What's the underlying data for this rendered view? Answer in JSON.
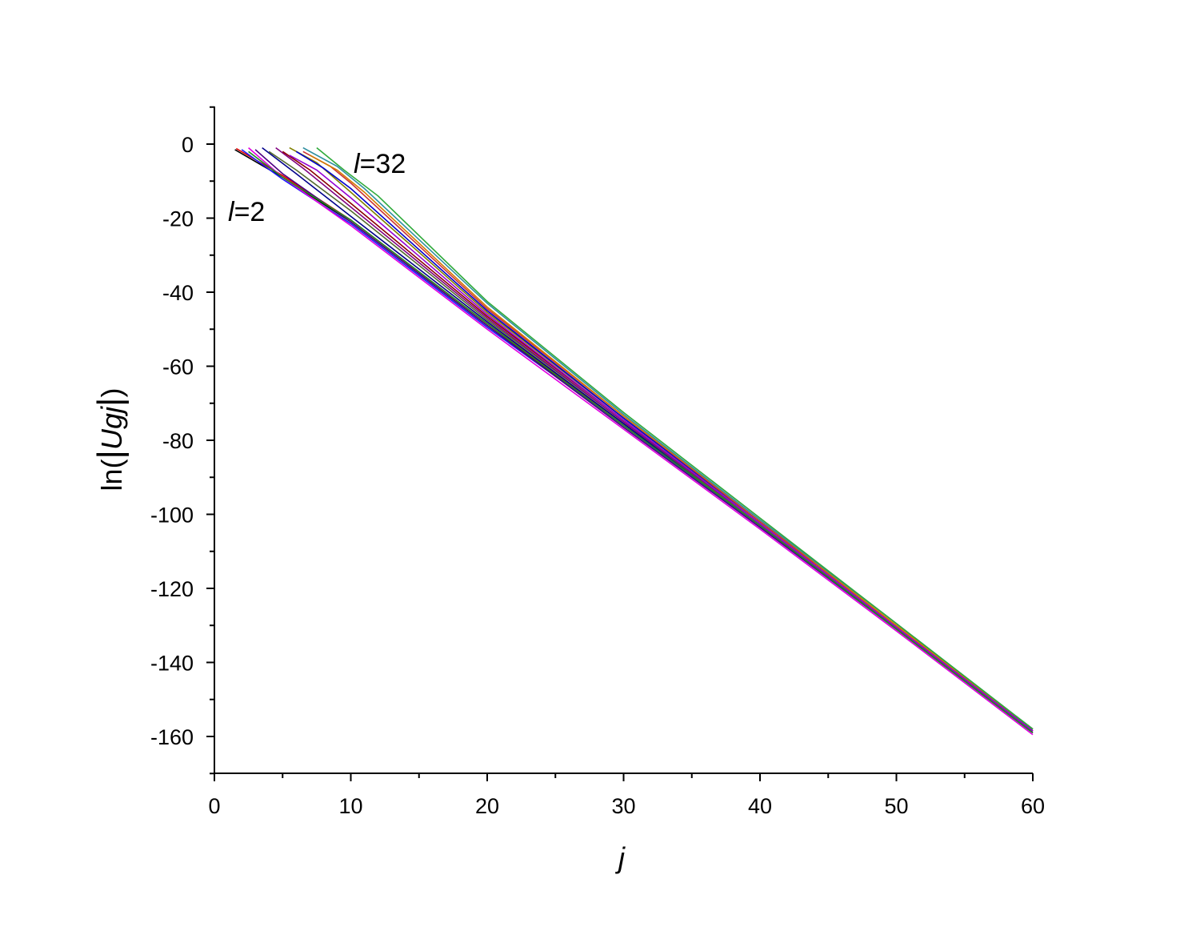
{
  "chart_data": {
    "type": "line",
    "xlabel": "j",
    "ylabel": {
      "prefix": "ln(",
      "symbol": "Ug",
      "subscript": "j",
      "suffix": ")"
    },
    "xlim": [
      0,
      60
    ],
    "ylim": [
      -170,
      10
    ],
    "x_ticks": [
      "0",
      "10",
      "20",
      "30",
      "40",
      "50",
      "60"
    ],
    "y_ticks": [
      "0",
      "-20",
      "-40",
      "-60",
      "-80",
      "-100",
      "-120",
      "-140",
      "-160"
    ],
    "grid": false,
    "annotations": [
      {
        "italic": "l",
        "text": "=32",
        "x": 10.1,
        "y": -4.5
      },
      {
        "italic": "l",
        "text": "=2",
        "x": 1.0,
        "y": -24
      }
    ],
    "series": [
      {
        "color": "#000000",
        "values": [
          [
            1.5,
            -1.5
          ],
          [
            5,
            -9
          ],
          [
            10,
            -21
          ],
          [
            20,
            -49
          ],
          [
            30,
            -76
          ],
          [
            40,
            -103
          ],
          [
            50,
            -131
          ],
          [
            60,
            -159
          ]
        ]
      },
      {
        "color": "#e00000",
        "values": [
          [
            1.6,
            -1.2
          ],
          [
            5,
            -8.5
          ],
          [
            10,
            -20.5
          ],
          [
            20,
            -48.5
          ],
          [
            30,
            -75.5
          ],
          [
            40,
            -103
          ],
          [
            50,
            -131
          ],
          [
            60,
            -159
          ]
        ]
      },
      {
        "color": "#1a1aff",
        "values": [
          [
            2.0,
            -1.5
          ],
          [
            5,
            -9.5
          ],
          [
            10,
            -21.5
          ],
          [
            20,
            -49.5
          ],
          [
            30,
            -76
          ],
          [
            40,
            -103.5
          ],
          [
            50,
            -131
          ],
          [
            60,
            -159
          ]
        ]
      },
      {
        "color": "#e000e0",
        "values": [
          [
            2.5,
            -1.0
          ],
          [
            5,
            -9
          ],
          [
            10,
            -22
          ],
          [
            20,
            -50
          ],
          [
            30,
            -77
          ],
          [
            40,
            -104
          ],
          [
            50,
            -131.5
          ],
          [
            60,
            -159.5
          ]
        ]
      },
      {
        "color": "#00008b",
        "values": [
          [
            3.5,
            -1.0
          ],
          [
            6,
            -8
          ],
          [
            10,
            -19.5
          ],
          [
            20,
            -48
          ],
          [
            30,
            -75.5
          ],
          [
            40,
            -103
          ],
          [
            50,
            -130.5
          ],
          [
            60,
            -158.5
          ]
        ]
      },
      {
        "color": "#556b2f",
        "values": [
          [
            4.0,
            -2.0
          ],
          [
            6,
            -7
          ],
          [
            10,
            -18
          ],
          [
            20,
            -47.5
          ],
          [
            30,
            -75
          ],
          [
            40,
            -103
          ],
          [
            50,
            -130.5
          ],
          [
            60,
            -158.5
          ]
        ]
      },
      {
        "color": "#800080",
        "values": [
          [
            4.5,
            -1.0
          ],
          [
            6.5,
            -6.5
          ],
          [
            10,
            -17
          ],
          [
            20,
            -47
          ],
          [
            30,
            -75
          ],
          [
            40,
            -102.5
          ],
          [
            50,
            -130.5
          ],
          [
            60,
            -158.5
          ]
        ]
      },
      {
        "color": "#8b0000",
        "values": [
          [
            5.0,
            -2.0
          ],
          [
            7,
            -7
          ],
          [
            10,
            -16
          ],
          [
            20,
            -46.5
          ],
          [
            30,
            -74.5
          ],
          [
            40,
            -102.5
          ],
          [
            50,
            -130.5
          ],
          [
            60,
            -158.5
          ]
        ]
      },
      {
        "color": "#9400d3",
        "values": [
          [
            5.5,
            -3.0
          ],
          [
            7.5,
            -7
          ],
          [
            10,
            -14.5
          ],
          [
            20,
            -46
          ],
          [
            30,
            -74.5
          ],
          [
            40,
            -102.5
          ],
          [
            50,
            -130.5
          ],
          [
            60,
            -158.5
          ]
        ]
      },
      {
        "color": "#808000",
        "values": [
          [
            5.5,
            -1.0
          ],
          [
            7.5,
            -5
          ],
          [
            10,
            -13
          ],
          [
            20,
            -45.5
          ],
          [
            30,
            -74
          ],
          [
            40,
            -102
          ],
          [
            50,
            -130
          ],
          [
            60,
            -158
          ]
        ]
      },
      {
        "color": "#0000cd",
        "values": [
          [
            6.0,
            -2.0
          ],
          [
            8,
            -6.5
          ],
          [
            10,
            -12
          ],
          [
            20,
            -45
          ],
          [
            30,
            -74
          ],
          [
            40,
            -102
          ],
          [
            50,
            -130
          ],
          [
            60,
            -158
          ]
        ]
      },
      {
        "color": "#cc3333",
        "values": [
          [
            6.5,
            -2.0
          ],
          [
            8.5,
            -6
          ],
          [
            10,
            -10.5
          ],
          [
            20,
            -44.5
          ],
          [
            30,
            -73.5
          ],
          [
            40,
            -102
          ],
          [
            50,
            -130
          ],
          [
            60,
            -158
          ]
        ]
      },
      {
        "color": "#d47a00",
        "values": [
          [
            7.0,
            -3.0
          ],
          [
            9,
            -7
          ],
          [
            11,
            -13
          ],
          [
            20,
            -44
          ],
          [
            30,
            -73.5
          ],
          [
            40,
            -101.5
          ],
          [
            50,
            -130
          ],
          [
            60,
            -158
          ]
        ]
      },
      {
        "color": "#2f8fa0",
        "values": [
          [
            6.5,
            -1.0
          ],
          [
            9,
            -6
          ],
          [
            11,
            -12
          ],
          [
            20,
            -43
          ],
          [
            30,
            -73
          ],
          [
            40,
            -101.5
          ],
          [
            50,
            -129.5
          ],
          [
            60,
            -158
          ]
        ]
      },
      {
        "color": "#2eaa3a",
        "values": [
          [
            7.5,
            -1.0
          ],
          [
            9.5,
            -7
          ],
          [
            12,
            -14
          ],
          [
            20,
            -42.5
          ],
          [
            30,
            -72.5
          ],
          [
            40,
            -101
          ],
          [
            50,
            -129.5
          ],
          [
            60,
            -158
          ]
        ]
      },
      {
        "color": "#4b0082",
        "values": [
          [
            3.0,
            -1.5
          ],
          [
            5,
            -8
          ],
          [
            10,
            -21
          ],
          [
            20,
            -49
          ],
          [
            30,
            -76.5
          ],
          [
            40,
            -103.5
          ],
          [
            50,
            -131
          ],
          [
            60,
            -159
          ]
        ]
      },
      {
        "color": "#228b22",
        "values": [
          [
            2.5,
            -2.0
          ],
          [
            5,
            -9
          ],
          [
            10,
            -20.5
          ],
          [
            20,
            -48.5
          ],
          [
            30,
            -76
          ],
          [
            40,
            -103
          ],
          [
            50,
            -131
          ],
          [
            60,
            -159
          ]
        ]
      }
    ]
  }
}
